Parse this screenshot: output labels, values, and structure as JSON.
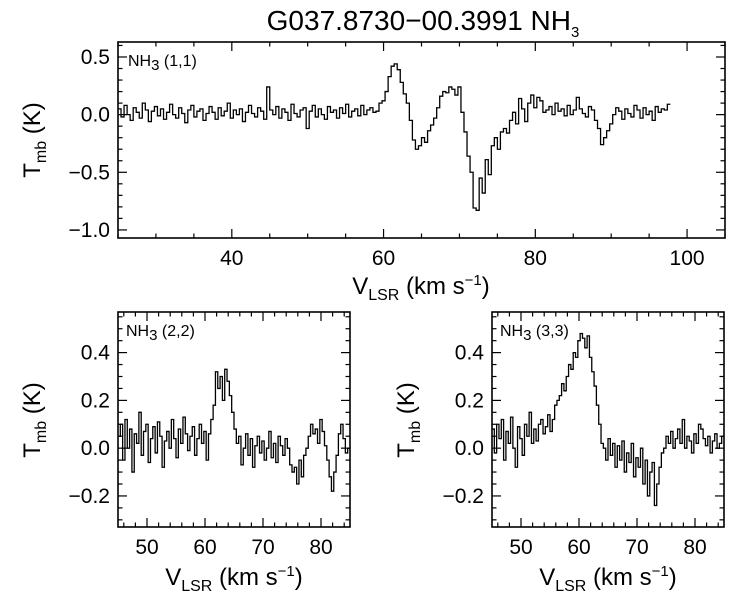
{
  "figure": {
    "title": "G037.8730−00.3991 NH",
    "title_sub": "3"
  },
  "chart_data": [
    {
      "type": "line",
      "step": true,
      "panel": "top",
      "label": "NH",
      "label_sub": "3",
      "label_suffix": " (1,1)",
      "xlabel": "V",
      "xlabel_sub": "LSR",
      "xlabel_unit": " (km s",
      "xlabel_sup": "−1",
      "xlabel_close": ")",
      "ylabel": "T",
      "ylabel_sub": "mb",
      "ylabel_unit": " (K)",
      "xlim": [
        25,
        105
      ],
      "ylim": [
        -1.07,
        0.63
      ],
      "xticks": [
        40,
        60,
        80,
        100
      ],
      "yticks": [
        -1.0,
        -0.5,
        0.0,
        0.5
      ],
      "ytick_labels": [
        "−1.0",
        "−0.5",
        "0.0",
        "0.5"
      ],
      "x_minor_step": 5,
      "y_minor_step": 0.1,
      "x_start": 25,
      "x_step": 0.4,
      "y": [
        0.05,
        -0.02,
        0.08,
        0.0,
        -0.05,
        0.06,
        0.02,
        -0.03,
        0.1,
        0.04,
        -0.06,
        0.03,
        0.07,
        -0.01,
        0.05,
        -0.04,
        0.02,
        0.09,
        0.0,
        -0.03,
        0.06,
        0.01,
        -0.07,
        0.04,
        0.08,
        -0.02,
        0.03,
        0.05,
        -0.05,
        0.01,
        0.07,
        0.02,
        -0.04,
        0.06,
        -0.01,
        0.03,
        0.1,
        -0.03,
        0.04,
        0.0,
        0.05,
        -0.06,
        0.02,
        0.08,
        0.01,
        -0.02,
        0.06,
        0.03,
        -0.04,
        0.24,
        0.04,
        0.0,
        0.07,
        -0.03,
        0.05,
        0.02,
        -0.05,
        0.09,
        0.01,
        -0.02,
        0.04,
        0.06,
        -0.12,
        0.03,
        0.08,
        -0.02,
        0.05,
        0.0,
        -0.04,
        0.07,
        0.02,
        0.04,
        -0.03,
        0.06,
        0.01,
        0.09,
        -0.02,
        0.03,
        0.05,
        -0.01,
        0.08,
        0.0,
        0.04,
        0.06,
        0.02,
        0.03,
        0.1,
        0.12,
        0.2,
        0.33,
        0.42,
        0.44,
        0.39,
        0.28,
        0.18,
        0.1,
        -0.05,
        -0.22,
        -0.3,
        -0.27,
        -0.2,
        -0.24,
        -0.14,
        -0.09,
        -0.03,
        0.06,
        0.16,
        0.2,
        0.19,
        0.24,
        0.22,
        0.17,
        0.24,
        0.02,
        -0.15,
        -0.36,
        -0.5,
        -0.81,
        -0.83,
        -0.55,
        -0.68,
        -0.39,
        -0.52,
        -0.27,
        -0.2,
        -0.3,
        -0.15,
        -0.12,
        -0.16,
        -0.05,
        0.02,
        -0.08,
        0.14,
        0.05,
        -0.06,
        0.1,
        0.17,
        0.06,
        0.15,
        0.12,
        0.02,
        0.04,
        0.07,
        0.0,
        0.1,
        0.03,
        0.05,
        -0.01,
        0.08,
        0.0,
        0.04,
        0.15,
        0.05,
        0.01,
        -0.02,
        0.07,
        0.04,
        -0.05,
        -0.12,
        -0.26,
        -0.2,
        -0.14,
        -0.08,
        0.0,
        0.06,
        0.03,
        -0.04,
        0.05,
        0.01,
        -0.02,
        0.08,
        0.04,
        -0.03,
        0.06,
        0.0,
        0.03,
        -0.05,
        0.07,
        0.02,
        0.05,
        0.04,
        0.09
      ]
    },
    {
      "type": "line",
      "step": true,
      "panel": "bottom-left",
      "label": "NH",
      "label_sub": "3",
      "label_suffix": " (2,2)",
      "xlabel": "V",
      "xlabel_sub": "LSR",
      "xlabel_unit": " (km s",
      "xlabel_sup": "−1",
      "xlabel_close": ")",
      "ylabel": "T",
      "ylabel_sub": "mb",
      "ylabel_unit": " (K)",
      "xlim": [
        45,
        85
      ],
      "ylim": [
        -0.33,
        0.57
      ],
      "xticks": [
        50,
        60,
        70,
        80
      ],
      "yticks": [
        -0.2,
        0.0,
        0.2,
        0.4
      ],
      "ytick_labels": [
        "−0.2",
        "0.0",
        "0.2",
        "0.4"
      ],
      "x_minor_step": 2,
      "y_minor_step": 0.05,
      "x_start": 45,
      "x_step": 0.4,
      "y": [
        0.05,
        0.1,
        -0.05,
        0.12,
        0.0,
        0.08,
        -0.1,
        0.06,
        0.02,
        0.15,
        -0.03,
        0.07,
        0.1,
        -0.06,
        0.04,
        0.09,
        -0.02,
        0.11,
        0.05,
        -0.08,
        0.03,
        0.07,
        0.0,
        0.12,
        0.04,
        -0.04,
        0.08,
        0.02,
        0.13,
        0.06,
        -0.01,
        0.05,
        0.09,
        -0.03,
        0.04,
        0.1,
        0.02,
        0.07,
        -0.05,
        0.06,
        0.12,
        0.18,
        0.32,
        0.25,
        0.3,
        0.2,
        0.33,
        0.28,
        0.22,
        0.15,
        0.08,
        0.02,
        0.05,
        -0.07,
        0.0,
        0.06,
        -0.03,
        0.04,
        -0.08,
        0.01,
        0.05,
        -0.02,
        0.03,
        -0.05,
        0.0,
        0.07,
        -0.04,
        0.02,
        -0.06,
        0.05,
        0.01,
        -0.03,
        0.04,
        0.0,
        -0.07,
        -0.1,
        -0.08,
        -0.15,
        -0.05,
        -0.12,
        -0.03,
        0.0,
        0.05,
        0.1,
        0.06,
        0.08,
        0.02,
        0.12,
        0.07,
        0.01,
        -0.05,
        -0.12,
        -0.18,
        -0.1,
        -0.03,
        0.06,
        0.1,
        0.04,
        -0.02,
        0.0,
        0.05
      ]
    },
    {
      "type": "line",
      "step": true,
      "panel": "bottom-right",
      "label": "NH",
      "label_sub": "3",
      "label_suffix": " (3,3)",
      "xlabel": "V",
      "xlabel_sub": "LSR",
      "xlabel_unit": " (km s",
      "xlabel_sup": "−1",
      "xlabel_close": ")",
      "ylabel": "T",
      "ylabel_sub": "mb",
      "ylabel_unit": " (K)",
      "xlim": [
        45,
        85
      ],
      "ylim": [
        -0.33,
        0.57
      ],
      "xticks": [
        50,
        60,
        70,
        80
      ],
      "yticks": [
        -0.2,
        0.0,
        0.2,
        0.4
      ],
      "ytick_labels": [
        "−0.2",
        "0.0",
        "0.2",
        "0.4"
      ],
      "x_minor_step": 2,
      "y_minor_step": 0.05,
      "x_start": 45,
      "x_step": 0.4,
      "y": [
        0.08,
        -0.02,
        0.1,
        0.04,
        0.12,
        -0.05,
        0.07,
        0.02,
        0.13,
        0.0,
        -0.08,
        0.09,
        0.04,
        -0.03,
        0.1,
        0.05,
        0.15,
        0.02,
        0.08,
        0.03,
        0.1,
        0.12,
        0.06,
        0.09,
        0.14,
        0.07,
        0.12,
        0.18,
        0.2,
        0.22,
        0.27,
        0.24,
        0.3,
        0.35,
        0.33,
        0.4,
        0.38,
        0.45,
        0.48,
        0.46,
        0.42,
        0.47,
        0.38,
        0.32,
        0.26,
        0.18,
        0.1,
        0.02,
        0.0,
        -0.05,
        0.04,
        -0.03,
        0.02,
        -0.08,
        0.01,
        -0.05,
        0.03,
        -0.1,
        -0.02,
        -0.06,
        0.02,
        -0.12,
        -0.04,
        -0.08,
        0.0,
        -0.15,
        -0.05,
        -0.2,
        -0.1,
        -0.06,
        -0.24,
        -0.15,
        -0.08,
        -0.02,
        0.0,
        0.05,
        0.02,
        0.07,
        0.0,
        0.04,
        0.08,
        0.02,
        0.12,
        0.0,
        0.05,
        0.03,
        -0.02,
        0.06,
        0.02,
        0.1,
        0.08,
        0.04,
        0.01,
        0.05,
        -0.02,
        0.03,
        0.06,
        0.0,
        0.02,
        0.05,
        0.0
      ]
    }
  ]
}
